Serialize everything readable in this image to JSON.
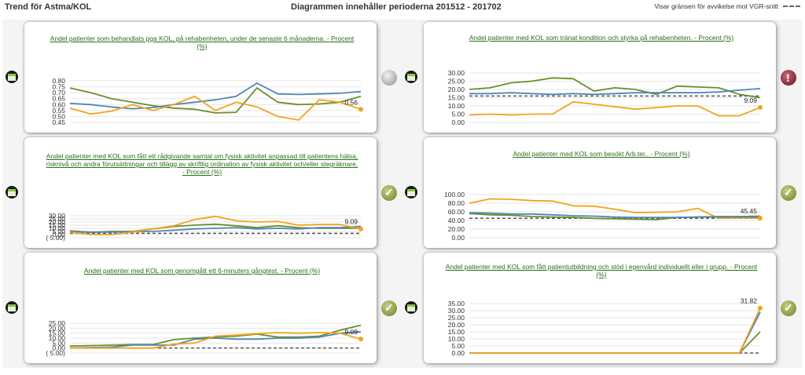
{
  "header": {
    "title": "Trend för Astma/KOL",
    "period": "Diagrammen innehåller perioderna 201512 - 201702",
    "legend": "Visar gränsen för avvikelse mot VGR-snitt"
  },
  "colors": {
    "series_blue": "#4f86b5",
    "series_green": "#6b8e2a",
    "series_orange": "#f2a31b",
    "limit_line": "#555555",
    "title_green": "#2a6e1a"
  },
  "chart_data": [
    {
      "type": "line",
      "title": "Andel patienter som behandlats pga KOL, på rehabenheten, under de senaste 6 månaderna. - Procent (%)",
      "status": "neutral",
      "ylim": [
        0.45,
        0.8
      ],
      "yticks": [
        "0.80",
        "0.75",
        "0.70",
        "0.65",
        "0.60",
        "0.55",
        "0.50",
        "0.45"
      ],
      "ytick_values": [
        0.8,
        0.75,
        0.7,
        0.65,
        0.6,
        0.55,
        0.5,
        0.45
      ],
      "limit": null,
      "end_label": "0.56",
      "series": [
        {
          "color": "#6b8e2a",
          "values": [
            0.74,
            0.7,
            0.65,
            0.62,
            0.59,
            0.57,
            0.56,
            0.53,
            0.535,
            0.74,
            0.62,
            0.6,
            0.605,
            0.62,
            0.67
          ]
        },
        {
          "color": "#4f86b5",
          "values": [
            0.61,
            0.6,
            0.58,
            0.565,
            0.575,
            0.6,
            0.62,
            0.64,
            0.67,
            0.78,
            0.69,
            0.685,
            0.69,
            0.695,
            0.71
          ]
        },
        {
          "color": "#f2a31b",
          "values": [
            0.57,
            0.52,
            0.545,
            0.6,
            0.55,
            0.6,
            0.67,
            0.55,
            0.62,
            0.58,
            0.5,
            0.47,
            0.64,
            0.62,
            0.56
          ]
        }
      ]
    },
    {
      "type": "line",
      "title": "Andel patienter med KOL som tränat kondition och styrka på rehabenheten. - Procent (%)",
      "status": "warning",
      "ylim": [
        0,
        30
      ],
      "yticks": [
        "30.00",
        "25.00",
        "20.00",
        "15.00",
        "10.00",
        "5.00",
        "0.00"
      ],
      "ytick_values": [
        30,
        25,
        20,
        15,
        10,
        5,
        0
      ],
      "limit": 16,
      "end_label": "9.09",
      "series": [
        {
          "color": "#6b8e2a",
          "values": [
            20,
            21,
            24,
            25,
            27,
            26.5,
            19,
            21,
            20,
            17,
            22,
            21.5,
            21,
            17,
            15
          ]
        },
        {
          "color": "#4f86b5",
          "values": [
            17.5,
            17.5,
            18,
            17.5,
            17,
            17.5,
            17,
            17.5,
            18,
            18,
            18,
            18,
            18.5,
            19.5,
            20.5
          ]
        },
        {
          "color": "#f2a31b",
          "values": [
            4.5,
            5,
            4.5,
            5,
            5,
            12.5,
            11,
            9.5,
            8,
            9,
            10,
            10,
            4,
            4,
            9.09
          ]
        }
      ]
    },
    {
      "type": "line",
      "title": "Andel patienter med KOL som fått ett rådgivande samtal om fysisk aktivitet anpassad till patientens hälsa, risknivå och andra förutsättningar och tillägg av skriftlig ordination av fysisk aktivitet och/eller stegräknare. - Procent (%)",
      "status": "ok",
      "ylim": [
        -5,
        30
      ],
      "yticks": [
        "30.00",
        "25.00",
        "20.00",
        "15.00",
        "10.00",
        "5.00",
        "0.00",
        "( 5.00)"
      ],
      "ytick_values": [
        30,
        25,
        20,
        15,
        10,
        5,
        0,
        -5
      ],
      "limit": 2,
      "end_label": "9.09",
      "series": [
        {
          "color": "#6b8e2a",
          "values": [
            6,
            3.5,
            5,
            5,
            9,
            13,
            15,
            16.5,
            14,
            11,
            14,
            11,
            10,
            10,
            10
          ]
        },
        {
          "color": "#4f86b5",
          "values": [
            5,
            4,
            4,
            4.5,
            5,
            7,
            9,
            10,
            11,
            9,
            10,
            9,
            11,
            11,
            13
          ]
        },
        {
          "color": "#f2a31b",
          "values": [
            4,
            0,
            0,
            4,
            9,
            14,
            24,
            29,
            22,
            20,
            21,
            15,
            16,
            16,
            9.09
          ]
        }
      ]
    },
    {
      "type": "line",
      "title": "Andel patienter med KOL som besökt Arb.ter.. - Procent (%)",
      "status": "ok",
      "ylim": [
        0,
        100
      ],
      "yticks": [
        "100.00",
        "80.00",
        "60.00",
        "40.00",
        "20.00",
        "0.00"
      ],
      "ytick_values": [
        100,
        80,
        60,
        40,
        20,
        0
      ],
      "limit": 45,
      "end_label": "45.45",
      "series": [
        {
          "color": "#f2a31b",
          "values": [
            80,
            90,
            89,
            86,
            85,
            74,
            73,
            66,
            58,
            59,
            60,
            68,
            45,
            46,
            45.45
          ]
        },
        {
          "color": "#6b8e2a",
          "values": [
            56,
            53,
            52,
            49,
            48,
            47,
            45,
            44,
            43,
            42,
            47,
            48,
            49,
            49,
            50
          ]
        },
        {
          "color": "#4f86b5",
          "values": [
            58,
            57,
            55,
            55,
            53,
            51,
            50,
            48,
            47,
            47,
            47,
            48,
            48,
            48,
            48
          ]
        }
      ]
    },
    {
      "type": "line",
      "title": "Andel patienter med KOL som genomgått ett 6-minuters gångtest. - Procent (%)",
      "status": "ok",
      "ylim": [
        -5,
        25
      ],
      "yticks": [
        "25.00",
        "20.00",
        "15.00",
        "10.00",
        "5.00",
        "0.00",
        "( 5.00)"
      ],
      "ytick_values": [
        25,
        20,
        15,
        10,
        5,
        0,
        -5
      ],
      "limit": 0,
      "end_label": "9.09",
      "series": [
        {
          "color": "#6b8e2a",
          "values": [
            2,
            2.5,
            3,
            3.5,
            3.5,
            8.5,
            10,
            11,
            12,
            14,
            11,
            11,
            12,
            18,
            23
          ]
        },
        {
          "color": "#4f86b5",
          "values": [
            0,
            0.5,
            1,
            3,
            3,
            3,
            9,
            10,
            9,
            9,
            10,
            10,
            11,
            15,
            16.5
          ]
        },
        {
          "color": "#f2a31b",
          "values": [
            0,
            0,
            0,
            0,
            0,
            4,
            5,
            12,
            13,
            14.5,
            15.5,
            15,
            15.5,
            15,
            9.09
          ]
        }
      ]
    },
    {
      "type": "line",
      "title": "Andel patienter med KOL som fått patientutbildning och stöd i egenvård individuellt eller i grupp. - Procent (%)",
      "status": "ok",
      "ylim": [
        0,
        35
      ],
      "yticks": [
        "35.00",
        "30.00",
        "25.00",
        "20.00",
        "15.00",
        "10.00",
        "5.00",
        "0.00"
      ],
      "ytick_values": [
        35,
        30,
        25,
        20,
        15,
        10,
        5,
        0
      ],
      "limit": 0,
      "end_label": "31.82",
      "series": [
        {
          "color": "#6b8e2a",
          "values": [
            0,
            0,
            0,
            0,
            0,
            0,
            0,
            0,
            0,
            0,
            0,
            0,
            0,
            0,
            15
          ]
        },
        {
          "color": "#4f86b5",
          "values": [
            0,
            0,
            0,
            0,
            0,
            0,
            0,
            0,
            0,
            0,
            0,
            0,
            0,
            0,
            29
          ]
        },
        {
          "color": "#f2a31b",
          "values": [
            0,
            0,
            0,
            0,
            0,
            0,
            0,
            0,
            0,
            0,
            0,
            0,
            0,
            0,
            31.82
          ]
        }
      ]
    }
  ]
}
